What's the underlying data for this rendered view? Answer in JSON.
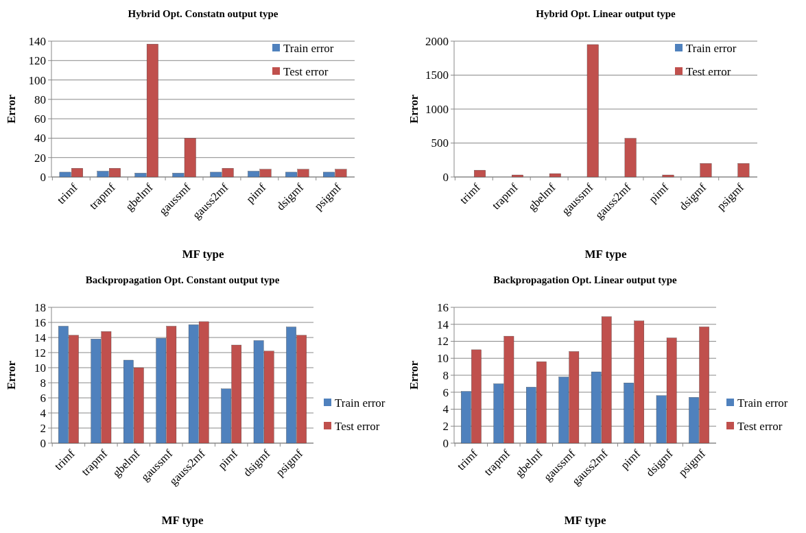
{
  "chart_data": [
    {
      "type": "bar",
      "title": "Hybrid  Opt. Constatn output  type",
      "xlabel": "MF type",
      "ylabel": "Error",
      "categories": [
        "trimf",
        "trapmf",
        "gbelmf",
        "gaussmf",
        "gauss2mf",
        "pimf",
        "dsigmf",
        "psigmf"
      ],
      "series": [
        {
          "name": "Train error",
          "color": "#4f81bd",
          "values": [
            5,
            6,
            4,
            4,
            5,
            6,
            5,
            5
          ]
        },
        {
          "name": "Test error",
          "color": "#c0504d",
          "values": [
            9,
            9,
            137,
            40,
            9,
            8,
            8,
            8
          ]
        }
      ],
      "ylim": [
        0,
        140
      ],
      "yticks": [
        0,
        20,
        40,
        60,
        80,
        100,
        120,
        140
      ],
      "grid": "y",
      "legend": "top right"
    },
    {
      "type": "bar",
      "title": "Hybrid  Opt. Linear output  type",
      "xlabel": "MF type",
      "ylabel": "Error",
      "categories": [
        "trimf",
        "trapmf",
        "gbelmf",
        "gaussmf",
        "gauss2mf",
        "pimf",
        "dsigmf",
        "psigmf"
      ],
      "series": [
        {
          "name": "Train error",
          "color": "#4f81bd",
          "values": [
            0,
            0,
            0,
            0,
            0,
            0,
            0,
            0
          ]
        },
        {
          "name": "Test error",
          "color": "#c0504d",
          "values": [
            100,
            30,
            50,
            1950,
            570,
            30,
            200,
            200
          ]
        }
      ],
      "ylim": [
        0,
        2000
      ],
      "yticks": [
        0,
        500,
        1000,
        1500,
        2000
      ],
      "grid": "y",
      "legend": "top right"
    },
    {
      "type": "bar",
      "title": "Backpropagation  Opt. Constant output  type",
      "xlabel": "MF type",
      "ylabel": "Error",
      "categories": [
        "trimf",
        "trapmf",
        "gbelmf",
        "gaussmf",
        "gauss2mf",
        "pimf",
        "dsigmf",
        "psigmf"
      ],
      "series": [
        {
          "name": "Train error",
          "color": "#4f81bd",
          "values": [
            15.5,
            13.8,
            11,
            13.9,
            15.7,
            7.2,
            13.6,
            15.4
          ]
        },
        {
          "name": "Test error",
          "color": "#c0504d",
          "values": [
            14.3,
            14.8,
            10,
            15.5,
            16.1,
            13,
            12.2,
            14.3
          ]
        }
      ],
      "ylim": [
        0,
        18
      ],
      "yticks": [
        0,
        2,
        4,
        6,
        8,
        10,
        12,
        14,
        16,
        18
      ],
      "grid": "y",
      "legend": "right"
    },
    {
      "type": "bar",
      "title": "Backpropagation  Opt. Linear output  type",
      "xlabel": "MF type",
      "ylabel": "Error",
      "categories": [
        "trimf",
        "trapmf",
        "gbelmf",
        "gaussmf",
        "gauss2mf",
        "pimf",
        "dsigmf",
        "psigmf"
      ],
      "series": [
        {
          "name": "Train error",
          "color": "#4f81bd",
          "values": [
            6.1,
            7,
            6.6,
            7.8,
            8.4,
            7.1,
            5.6,
            5.4
          ]
        },
        {
          "name": "Test error",
          "color": "#c0504d",
          "values": [
            11,
            12.6,
            9.6,
            10.8,
            14.9,
            14.4,
            12.4,
            13.7
          ]
        }
      ],
      "ylim": [
        0,
        16
      ],
      "yticks": [
        0,
        2,
        4,
        6,
        8,
        10,
        12,
        14,
        16
      ],
      "grid": "y",
      "legend": "right"
    }
  ]
}
